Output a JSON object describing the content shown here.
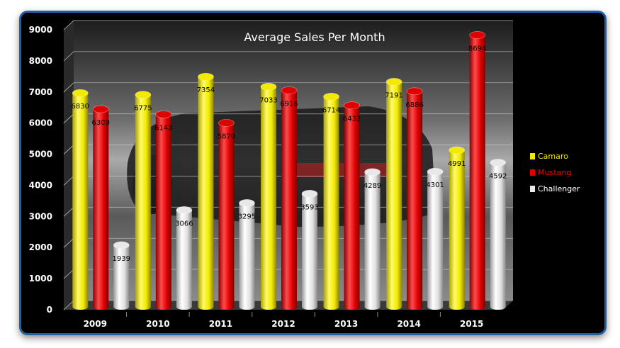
{
  "chart_data": {
    "type": "bar",
    "title": "Average Sales Per Month",
    "categories": [
      "2009",
      "2010",
      "2011",
      "2012",
      "2013",
      "2014",
      "2015"
    ],
    "ylim": [
      0,
      9000
    ],
    "yticks": [
      "0",
      "1000",
      "2000",
      "3000",
      "4000",
      "5000",
      "6000",
      "7000",
      "8000",
      "9000"
    ],
    "grid": true,
    "legend_position": "right",
    "series": [
      {
        "name": "Camaro",
        "color": "#f2ea00",
        "label_color": "#f2ea00",
        "values": [
          6830,
          6775,
          7354,
          7033,
          6714,
          7191,
          4991
        ]
      },
      {
        "name": "Mustang",
        "color": "#e00000",
        "label_color": "#e00000",
        "values": [
          6309,
          6143,
          5870,
          6916,
          6432,
          6886,
          8694
        ]
      },
      {
        "name": "Challenger",
        "color": "#e8e8e8",
        "label_color": "#ffffff",
        "values": [
          1939,
          3066,
          3295,
          3593,
          4289,
          4301,
          4592
        ]
      }
    ]
  }
}
